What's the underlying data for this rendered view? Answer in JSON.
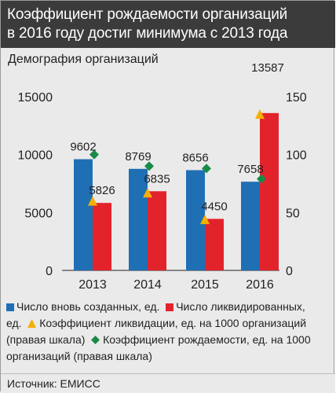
{
  "title": {
    "line1": "Коэффициент рождаемости организаций",
    "line2": "в 2016 году достиг минимума с 2013 года"
  },
  "subtitle": "Демография организаций",
  "colors": {
    "created": "#1f6fb5",
    "liquidated": "#e3232c",
    "liquidation_rate": "#f4b000",
    "birth_rate": "#1a8a47"
  },
  "chart_data": {
    "type": "bar",
    "categories": [
      "2013",
      "2014",
      "2015",
      "2016"
    ],
    "series": [
      {
        "name": "Число вновь созданных, ед.",
        "kind": "bar",
        "axis": "left",
        "values": [
          9602,
          8769,
          8656,
          7658
        ]
      },
      {
        "name": "Число ликвидированных, ед.",
        "kind": "bar",
        "axis": "left",
        "values": [
          5826,
          6835,
          4450,
          13587
        ]
      },
      {
        "name": "Коэффициент ликвидации, ед. на 1000 организаций (правая шкала)",
        "kind": "triangle",
        "axis": "right",
        "values": [
          60,
          67,
          44,
          135
        ]
      },
      {
        "name": "Коэффициент рождаемости, ед. на 1000 организаций (правая шкала)",
        "kind": "diamond",
        "axis": "right",
        "values": [
          100,
          90,
          88,
          79
        ]
      }
    ],
    "data_labels": [
      [
        "9602",
        "8769",
        "8656",
        "7658"
      ],
      [
        "5826",
        "6835",
        "4450",
        "13587"
      ]
    ],
    "y_left": {
      "ticks": [
        "0",
        "5000",
        "10000",
        "15000"
      ],
      "lim": [
        0,
        15000
      ]
    },
    "y_right": {
      "ticks": [
        "0",
        "50",
        "100",
        "150"
      ],
      "lim": [
        0,
        150
      ]
    },
    "grid": false,
    "legend": "bottom"
  },
  "legend": {
    "created": "Число вновь созданных, ед.",
    "liquidated_a": "Число ликвидированных,",
    "liquidated_b": "ед.",
    "liquidation_a": "Коэффициент ликвидации, ед. на 1000 организаций",
    "liquidation_b": "(правая шкала)",
    "birth_a": "Коэффициент рождаемости, ед. на 1000",
    "birth_b": "организаций (правая шкала)"
  },
  "source": "Источник: ЕМИСС"
}
